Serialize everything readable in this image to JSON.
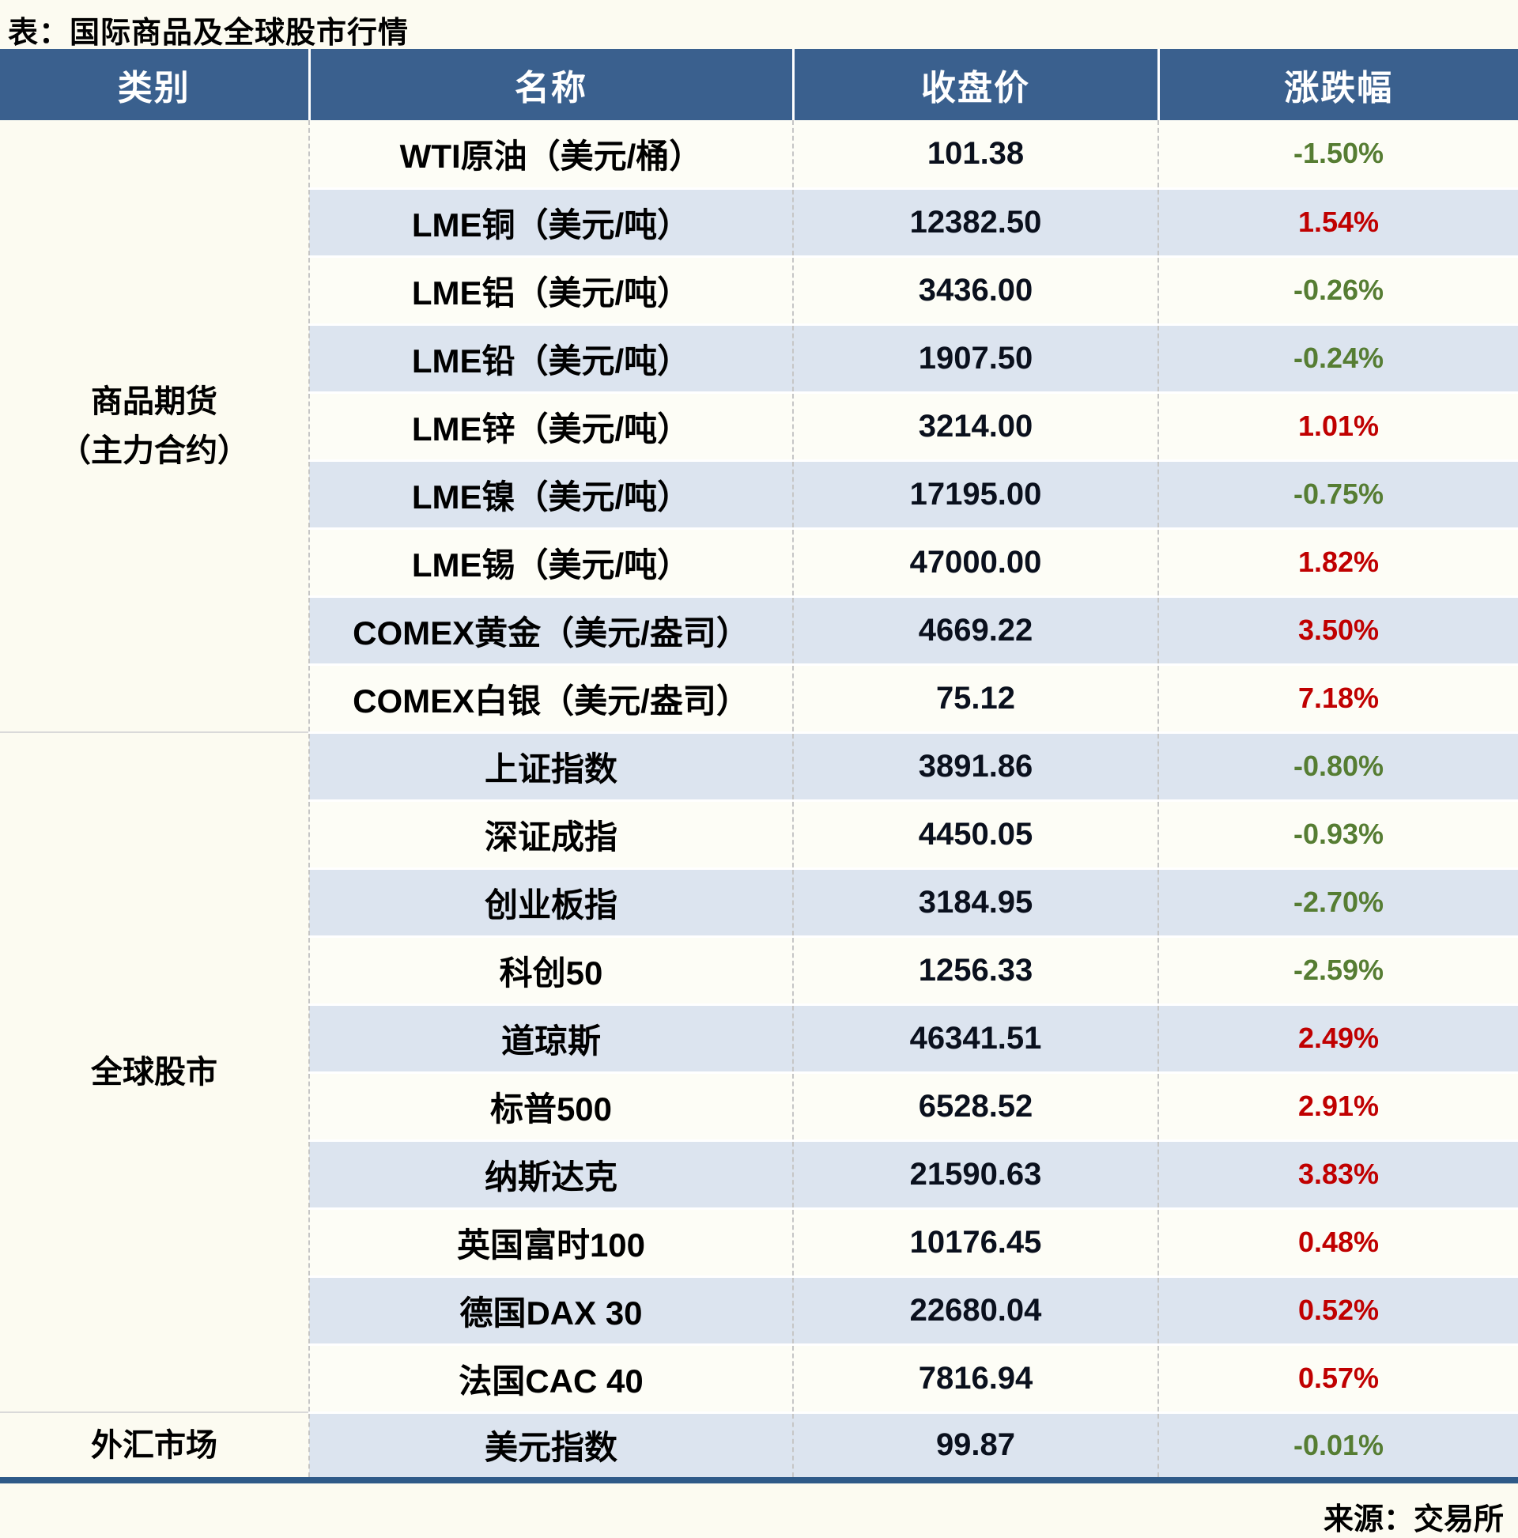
{
  "colors": {
    "header_bg": "#3a608e",
    "row_alt": "#dce4ef",
    "row_main": "#fdfdf6",
    "page_bg": "#fcfbf1",
    "positive_change": "#c00000",
    "negative_change": "#567d33",
    "number_text": "#0a101d",
    "bottom_border": "#2e5a88"
  },
  "chart_data": {
    "type": "table",
    "title": "表：国际商品及全球股市行情",
    "columns": [
      "类别",
      "名称",
      "收盘价",
      "涨跌幅"
    ],
    "groups": [
      {
        "label_lines": [
          "商品期货",
          "（主力合约）"
        ],
        "span": 9
      },
      {
        "label_lines": [
          "全球股市"
        ],
        "span": 10
      },
      {
        "label_lines": [
          "外汇市场"
        ],
        "span": 1
      }
    ],
    "rows": [
      {
        "name": "WTI原油（美元/桶）",
        "close": "101.38",
        "change": "-1.50%",
        "direction": "down"
      },
      {
        "name": "LME铜（美元/吨）",
        "close": "12382.50",
        "change": "1.54%",
        "direction": "up"
      },
      {
        "name": "LME铝（美元/吨）",
        "close": "3436.00",
        "change": "-0.26%",
        "direction": "down"
      },
      {
        "name": "LME铅（美元/吨）",
        "close": "1907.50",
        "change": "-0.24%",
        "direction": "down"
      },
      {
        "name": "LME锌（美元/吨）",
        "close": "3214.00",
        "change": "1.01%",
        "direction": "up"
      },
      {
        "name": "LME镍（美元/吨）",
        "close": "17195.00",
        "change": "-0.75%",
        "direction": "down"
      },
      {
        "name": "LME锡（美元/吨）",
        "close": "47000.00",
        "change": "1.82%",
        "direction": "up"
      },
      {
        "name": "COMEX黄金（美元/盎司）",
        "close": "4669.22",
        "change": "3.50%",
        "direction": "up"
      },
      {
        "name": "COMEX白银（美元/盎司）",
        "close": "75.12",
        "change": "7.18%",
        "direction": "up"
      },
      {
        "name": "上证指数",
        "close": "3891.86",
        "change": "-0.80%",
        "direction": "down"
      },
      {
        "name": "深证成指",
        "close": "4450.05",
        "change": "-0.93%",
        "direction": "down"
      },
      {
        "name": "创业板指",
        "close": "3184.95",
        "change": "-2.70%",
        "direction": "down"
      },
      {
        "name": "科创50",
        "close": "1256.33",
        "change": "-2.59%",
        "direction": "down"
      },
      {
        "name": "道琼斯",
        "close": "46341.51",
        "change": "2.49%",
        "direction": "up"
      },
      {
        "name": "标普500",
        "close": "6528.52",
        "change": "2.91%",
        "direction": "up"
      },
      {
        "name": "纳斯达克",
        "close": "21590.63",
        "change": "3.83%",
        "direction": "up"
      },
      {
        "name": "英国富时100",
        "close": "10176.45",
        "change": "0.48%",
        "direction": "up"
      },
      {
        "name": "德国DAX 30",
        "close": "22680.04",
        "change": "0.52%",
        "direction": "up"
      },
      {
        "name": "法国CAC 40",
        "close": "7816.94",
        "change": "0.57%",
        "direction": "up"
      },
      {
        "name": "美元指数",
        "close": "99.87",
        "change": "-0.01%",
        "direction": "down"
      }
    ],
    "source_note": "来源：交易所",
    "layout_hints": {
      "grid": "alternating row shading",
      "negative_color_convention": "green = decline, red = rise"
    }
  }
}
